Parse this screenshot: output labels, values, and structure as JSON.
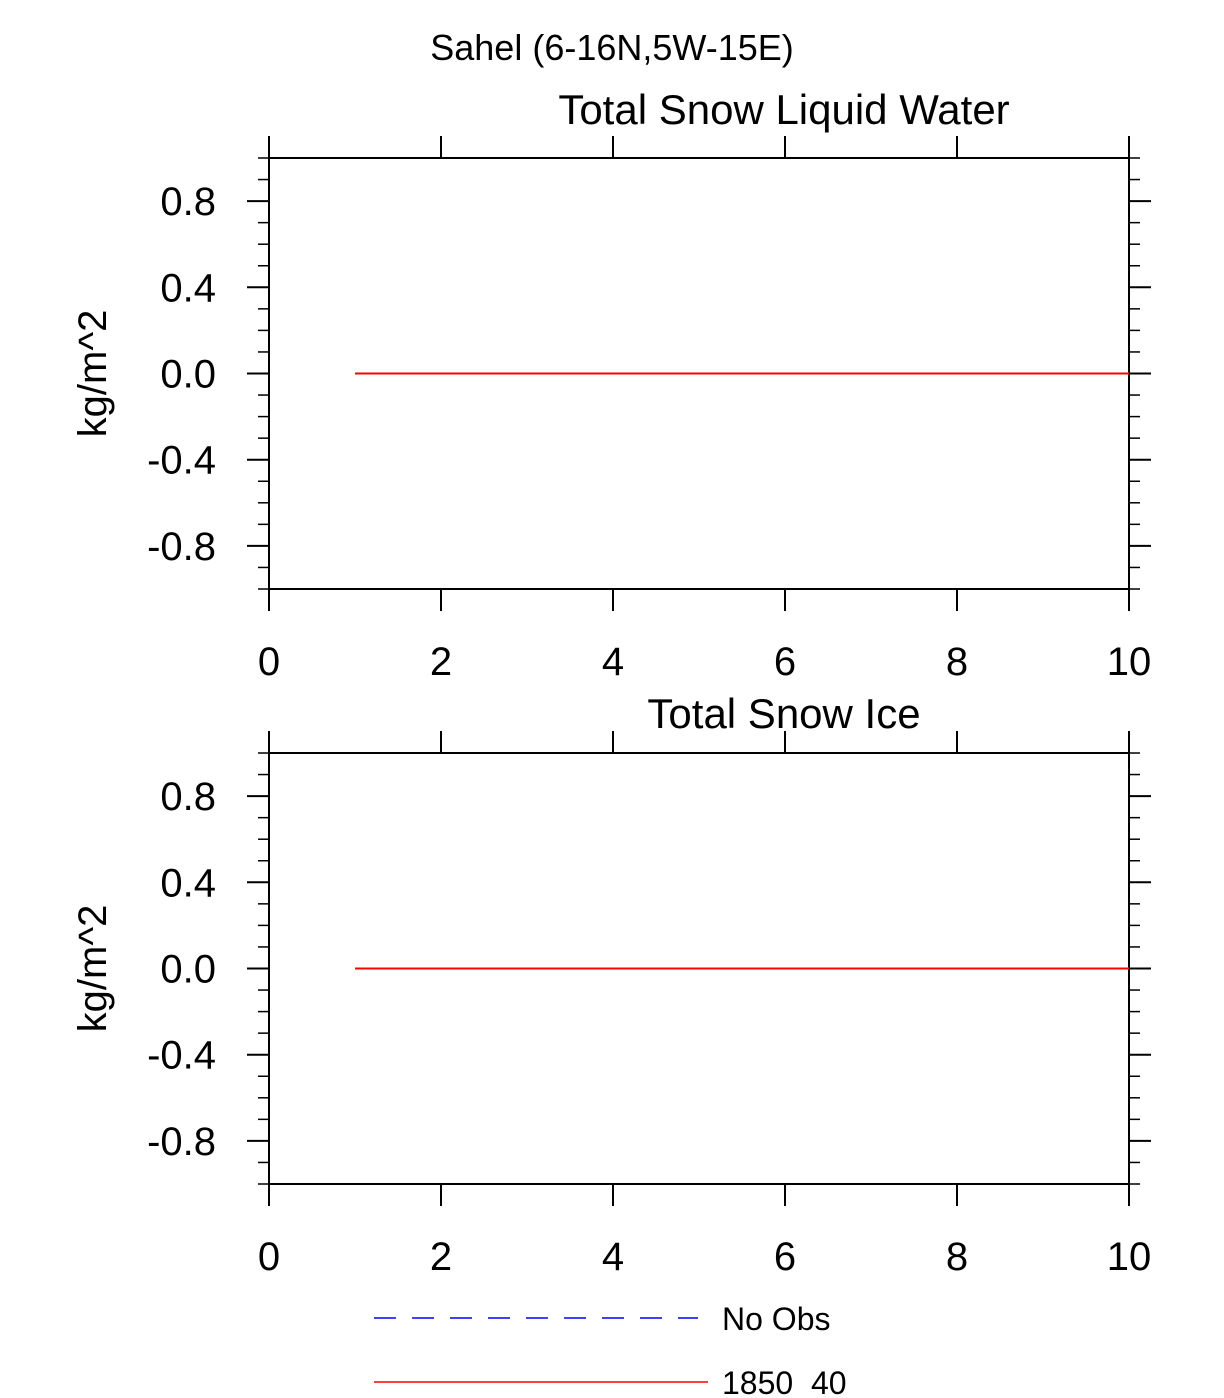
{
  "figure_title": "Sahel (6-16N,5W-15E)",
  "chart_data": [
    {
      "type": "line",
      "title": "Total Snow Liquid Water",
      "xlabel": "",
      "ylabel": "kg/m^2",
      "xlim": [
        0,
        10
      ],
      "ylim": [
        -1,
        1
      ],
      "x_ticks": [
        "0",
        "2",
        "4",
        "6",
        "8",
        "10"
      ],
      "y_ticks": [
        "0.8",
        "0.4",
        "0.0",
        "-0.4",
        "-0.8"
      ],
      "series": [
        {
          "name": "1850_40",
          "color": "#ff0000",
          "style": "solid",
          "x": [
            1,
            10
          ],
          "y": [
            0,
            0
          ]
        }
      ]
    },
    {
      "type": "line",
      "title": "Total Snow Ice",
      "xlabel": "",
      "ylabel": "kg/m^2",
      "xlim": [
        0,
        10
      ],
      "ylim": [
        -1,
        1
      ],
      "x_ticks": [
        "0",
        "2",
        "4",
        "6",
        "8",
        "10"
      ],
      "y_ticks": [
        "0.8",
        "0.4",
        "0.0",
        "-0.4",
        "-0.8"
      ],
      "series": [
        {
          "name": "1850_40",
          "color": "#ff0000",
          "style": "solid",
          "x": [
            1,
            10
          ],
          "y": [
            0,
            0
          ]
        }
      ]
    }
  ],
  "legend": [
    {
      "label": "No Obs",
      "color": "#0000ff",
      "style": "dashed"
    },
    {
      "label": "1850_40",
      "color": "#ff0000",
      "style": "solid"
    }
  ]
}
